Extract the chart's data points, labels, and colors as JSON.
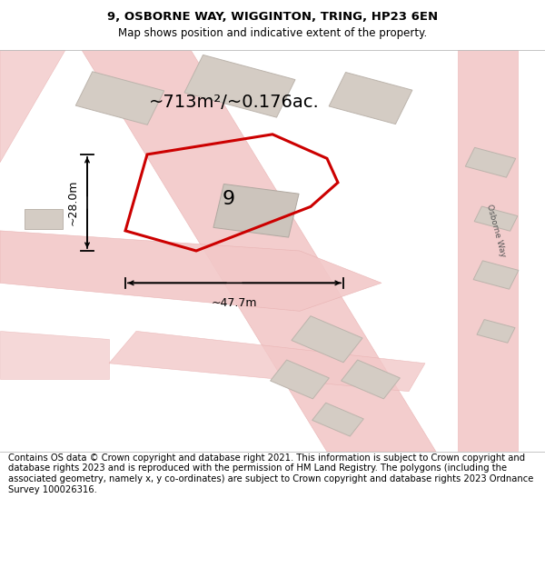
{
  "title_line1": "9, OSBORNE WAY, WIGGINTON, TRING, HP23 6EN",
  "title_line2": "Map shows position and indicative extent of the property.",
  "area_label": "~713m²/~0.176ac.",
  "width_label": "~47.7m",
  "height_label": "~28.0m",
  "number_label": "9",
  "bg_color": "#f7f4f1",
  "road_fill": "#f2c8c8",
  "road_edge": "#e8b0b0",
  "building_fill": "#d4ccc4",
  "building_edge": "#bcb4ac",
  "plot_edge": "#cc0000",
  "footer_text": "Contains OS data © Crown copyright and database right 2021. This information is subject to Crown copyright and database rights 2023 and is reproduced with the permission of HM Land Registry. The polygons (including the associated geometry, namely x, y co-ordinates) are subject to Crown copyright and database rights 2023 Ordnance Survey 100026316.",
  "road_label": "Osborne Way",
  "title_fontsize": 9.5,
  "subtitle_fontsize": 8.5,
  "footer_fontsize": 7.2,
  "area_fontsize": 14,
  "number_fontsize": 16,
  "dim_fontsize": 9
}
